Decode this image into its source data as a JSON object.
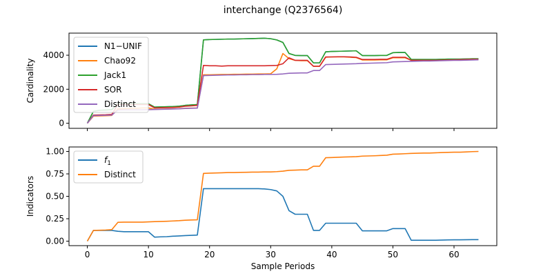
{
  "title": "interchange (Q2376564)",
  "colors": {
    "blue": "#1f77b4",
    "orange": "#ff7f0e",
    "green": "#2ca02c",
    "red": "#d62728",
    "purple": "#9467bd"
  },
  "chart_data": [
    {
      "type": "line",
      "xlabel": "",
      "ylabel": "Cardinality",
      "xlim": [
        -3,
        67
      ],
      "ylim": [
        -300,
        5300
      ],
      "xticks": [
        0,
        10,
        20,
        30,
        40,
        50,
        60
      ],
      "yticks": [
        0,
        2000,
        4000
      ],
      "x_tick_labels_visible": false,
      "legend": "upper-left",
      "series": [
        {
          "name": "N1−UNIF",
          "color": "#1f77b4",
          "x": [
            0,
            1,
            2,
            3,
            4,
            5,
            6,
            7,
            8,
            9,
            10,
            11,
            12,
            13,
            14,
            15,
            16,
            17,
            18,
            19,
            20,
            21,
            22,
            23,
            24,
            25,
            26,
            27,
            28,
            29,
            30,
            31,
            32,
            33,
            34,
            35,
            36,
            37,
            38,
            39,
            40,
            41,
            42,
            43,
            44,
            45,
            46,
            47,
            48,
            49,
            50,
            51,
            52,
            53,
            54,
            55,
            56,
            57,
            58,
            59,
            60,
            61,
            62,
            63,
            64
          ],
          "y": [
            0,
            700,
            760,
            780,
            800,
            1150,
            1150,
            1150,
            1150,
            1150,
            1150,
            950,
            960,
            970,
            980,
            1000,
            1050,
            1080,
            1100,
            4900,
            4920,
            4930,
            4940,
            4950,
            4950,
            4960,
            4970,
            4980,
            4990,
            5000,
            4970,
            4900,
            4750,
            4100,
            3990,
            3980,
            3980,
            3550,
            3550,
            4200,
            4220,
            4230,
            4240,
            4250,
            4260,
            3980,
            3980,
            3980,
            3990,
            3990,
            4150,
            4160,
            4160,
            3750,
            3750,
            3750,
            3750,
            3750,
            3760,
            3770,
            3770,
            3770,
            3780,
            3790,
            3790
          ]
        },
        {
          "name": "Chao92",
          "color": "#ff7f0e",
          "x": [
            0,
            1,
            2,
            3,
            4,
            5,
            6,
            7,
            8,
            9,
            10,
            11,
            12,
            13,
            14,
            15,
            16,
            17,
            18,
            19,
            20,
            21,
            22,
            23,
            24,
            25,
            26,
            27,
            28,
            29,
            30,
            31,
            32,
            33,
            34,
            35,
            36,
            37,
            38,
            39,
            40,
            41,
            42,
            43,
            44,
            45,
            46,
            47,
            48,
            49,
            50,
            51,
            52,
            53,
            54,
            55,
            56,
            57,
            58,
            59,
            60,
            61,
            62,
            63,
            64
          ],
          "y": [
            0,
            420,
            430,
            440,
            460,
            850,
            860,
            870,
            880,
            900,
            900,
            820,
            830,
            840,
            850,
            860,
            880,
            890,
            900,
            2850,
            2850,
            2860,
            2870,
            2870,
            2880,
            2880,
            2890,
            2890,
            2900,
            2900,
            2910,
            3200,
            4100,
            3800,
            3700,
            3680,
            3680,
            3350,
            3350,
            3880,
            3900,
            3900,
            3900,
            3880,
            3860,
            3720,
            3720,
            3720,
            3730,
            3730,
            3850,
            3850,
            3850,
            3700,
            3700,
            3700,
            3700,
            3700,
            3710,
            3720,
            3730,
            3740,
            3750,
            3760,
            3770
          ]
        },
        {
          "name": "Jack1",
          "color": "#2ca02c",
          "x": [
            0,
            1,
            2,
            3,
            4,
            5,
            6,
            7,
            8,
            9,
            10,
            11,
            12,
            13,
            14,
            15,
            16,
            17,
            18,
            19,
            20,
            21,
            22,
            23,
            24,
            25,
            26,
            27,
            28,
            29,
            30,
            31,
            32,
            33,
            34,
            35,
            36,
            37,
            38,
            39,
            40,
            41,
            42,
            43,
            44,
            45,
            46,
            47,
            48,
            49,
            50,
            51,
            52,
            53,
            54,
            55,
            56,
            57,
            58,
            59,
            60,
            61,
            62,
            63,
            64
          ],
          "y": [
            0,
            700,
            760,
            780,
            800,
            1150,
            1150,
            1150,
            1150,
            1150,
            1150,
            950,
            960,
            970,
            980,
            1000,
            1050,
            1080,
            1100,
            4900,
            4920,
            4930,
            4940,
            4950,
            4950,
            4960,
            4970,
            4980,
            4990,
            5000,
            4970,
            4900,
            4750,
            4100,
            3990,
            3980,
            3980,
            3550,
            3550,
            4200,
            4220,
            4230,
            4240,
            4250,
            4260,
            3980,
            3980,
            3980,
            3990,
            3990,
            4150,
            4160,
            4160,
            3750,
            3750,
            3750,
            3750,
            3750,
            3760,
            3770,
            3770,
            3770,
            3780,
            3790,
            3790
          ]
        },
        {
          "name": "SOR",
          "color": "#d62728",
          "x": [
            0,
            1,
            2,
            3,
            4,
            5,
            6,
            7,
            8,
            9,
            10,
            11,
            12,
            13,
            14,
            15,
            16,
            17,
            18,
            19,
            20,
            21,
            22,
            23,
            24,
            25,
            26,
            27,
            28,
            29,
            30,
            31,
            32,
            33,
            34,
            35,
            36,
            37,
            38,
            39,
            40,
            41,
            42,
            43,
            44,
            45,
            46,
            47,
            48,
            49,
            50,
            51,
            52,
            53,
            54,
            55,
            56,
            57,
            58,
            59,
            60,
            61,
            62,
            63,
            64
          ],
          "y": [
            0,
            480,
            490,
            500,
            520,
            1100,
            1100,
            1100,
            1100,
            1100,
            1100,
            900,
            910,
            920,
            930,
            950,
            1000,
            1020,
            1050,
            3400,
            3380,
            3380,
            3360,
            3380,
            3380,
            3380,
            3380,
            3380,
            3380,
            3380,
            3390,
            3400,
            3500,
            3850,
            3700,
            3700,
            3700,
            3350,
            3350,
            3900,
            3900,
            3910,
            3910,
            3900,
            3880,
            3750,
            3750,
            3750,
            3760,
            3760,
            3880,
            3880,
            3880,
            3700,
            3700,
            3700,
            3700,
            3700,
            3710,
            3720,
            3730,
            3740,
            3750,
            3760,
            3760
          ]
        },
        {
          "name": "Distinct",
          "color": "#9467bd",
          "x": [
            0,
            1,
            2,
            3,
            4,
            5,
            6,
            7,
            8,
            9,
            10,
            11,
            12,
            13,
            14,
            15,
            16,
            17,
            18,
            19,
            20,
            21,
            22,
            23,
            24,
            25,
            26,
            27,
            28,
            29,
            30,
            31,
            32,
            33,
            34,
            35,
            36,
            37,
            38,
            39,
            40,
            41,
            42,
            43,
            44,
            45,
            46,
            47,
            48,
            49,
            50,
            51,
            52,
            53,
            54,
            55,
            56,
            57,
            58,
            59,
            60,
            61,
            62,
            63,
            64
          ],
          "y": [
            0,
            450,
            460,
            470,
            480,
            780,
            790,
            790,
            790,
            790,
            800,
            810,
            820,
            830,
            840,
            850,
            870,
            880,
            890,
            2800,
            2810,
            2820,
            2830,
            2840,
            2840,
            2850,
            2850,
            2860,
            2860,
            2870,
            2870,
            2880,
            2900,
            2940,
            2950,
            2960,
            2960,
            3100,
            3100,
            3450,
            3460,
            3470,
            3480,
            3490,
            3500,
            3520,
            3530,
            3540,
            3550,
            3560,
            3610,
            3620,
            3630,
            3640,
            3650,
            3660,
            3660,
            3670,
            3680,
            3690,
            3700,
            3700,
            3710,
            3720,
            3730
          ]
        }
      ]
    },
    {
      "type": "line",
      "xlabel": "Sample Periods",
      "ylabel": "Indicators",
      "xlim": [
        -3,
        67
      ],
      "ylim": [
        -0.05,
        1.05
      ],
      "xticks": [
        0,
        10,
        20,
        30,
        40,
        50,
        60
      ],
      "yticks": [
        0.0,
        0.25,
        0.5,
        0.75,
        1.0
      ],
      "ytick_labels": [
        "0.00",
        "0.25",
        "0.50",
        "0.75",
        "1.00"
      ],
      "xtick_labels": [
        "0",
        "10",
        "20",
        "30",
        "40",
        "50",
        "60"
      ],
      "legend": "upper-left",
      "series": [
        {
          "name": "f",
          "subscript": "1",
          "color": "#1f77b4",
          "x": [
            0,
            1,
            2,
            3,
            4,
            5,
            6,
            7,
            8,
            9,
            10,
            11,
            12,
            13,
            14,
            15,
            16,
            17,
            18,
            19,
            20,
            21,
            22,
            23,
            24,
            25,
            26,
            27,
            28,
            29,
            30,
            31,
            32,
            33,
            34,
            35,
            36,
            37,
            38,
            39,
            40,
            41,
            42,
            43,
            44,
            45,
            46,
            47,
            48,
            49,
            50,
            51,
            52,
            53,
            54,
            55,
            56,
            57,
            58,
            59,
            60,
            61,
            62,
            63,
            64
          ],
          "y": [
            0.0,
            0.12,
            0.12,
            0.12,
            0.12,
            0.11,
            0.105,
            0.105,
            0.105,
            0.105,
            0.105,
            0.045,
            0.048,
            0.05,
            0.055,
            0.058,
            0.062,
            0.065,
            0.068,
            0.585,
            0.585,
            0.585,
            0.585,
            0.585,
            0.585,
            0.585,
            0.585,
            0.585,
            0.585,
            0.582,
            0.575,
            0.56,
            0.5,
            0.34,
            0.3,
            0.3,
            0.3,
            0.12,
            0.12,
            0.2,
            0.2,
            0.2,
            0.2,
            0.2,
            0.2,
            0.115,
            0.115,
            0.115,
            0.115,
            0.115,
            0.14,
            0.14,
            0.14,
            0.01,
            0.01,
            0.01,
            0.01,
            0.01,
            0.012,
            0.014,
            0.015,
            0.015,
            0.016,
            0.017,
            0.017
          ]
        },
        {
          "name": "Distinct",
          "color": "#ff7f0e",
          "x": [
            0,
            1,
            2,
            3,
            4,
            5,
            6,
            7,
            8,
            9,
            10,
            11,
            12,
            13,
            14,
            15,
            16,
            17,
            18,
            19,
            20,
            21,
            22,
            23,
            24,
            25,
            26,
            27,
            28,
            29,
            30,
            31,
            32,
            33,
            34,
            35,
            36,
            37,
            38,
            39,
            40,
            41,
            42,
            43,
            44,
            45,
            46,
            47,
            48,
            49,
            50,
            51,
            52,
            53,
            54,
            55,
            56,
            57,
            58,
            59,
            60,
            61,
            62,
            63,
            64
          ],
          "y": [
            0.0,
            0.12,
            0.122,
            0.124,
            0.128,
            0.21,
            0.212,
            0.212,
            0.212,
            0.212,
            0.215,
            0.218,
            0.22,
            0.222,
            0.225,
            0.228,
            0.233,
            0.236,
            0.238,
            0.755,
            0.758,
            0.76,
            0.762,
            0.765,
            0.765,
            0.767,
            0.768,
            0.77,
            0.77,
            0.772,
            0.772,
            0.775,
            0.78,
            0.79,
            0.792,
            0.795,
            0.795,
            0.835,
            0.835,
            0.93,
            0.932,
            0.935,
            0.938,
            0.94,
            0.942,
            0.948,
            0.95,
            0.952,
            0.955,
            0.958,
            0.97,
            0.972,
            0.975,
            0.978,
            0.98,
            0.982,
            0.982,
            0.985,
            0.988,
            0.99,
            0.992,
            0.992,
            0.995,
            0.998,
            1.0
          ]
        }
      ]
    }
  ]
}
